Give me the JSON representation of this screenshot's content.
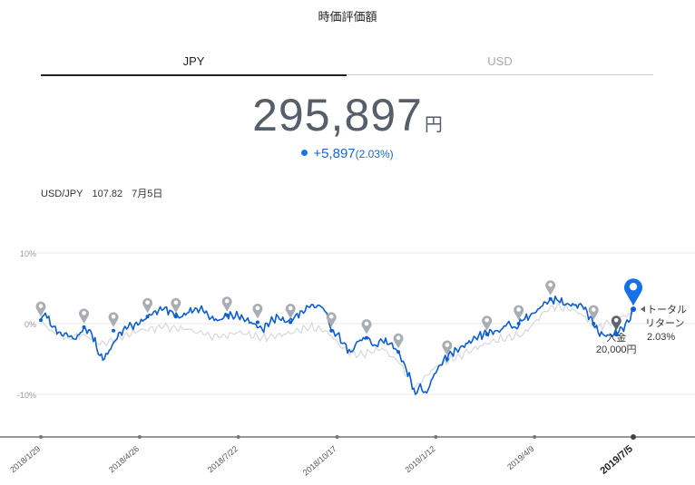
{
  "page": {
    "title": "時価評価額",
    "tabs": [
      {
        "label": "JPY",
        "active": true
      },
      {
        "label": "USD",
        "active": false
      }
    ],
    "amount": {
      "value": "295,897",
      "unit": "円"
    },
    "change": {
      "value": "+5,897",
      "percent": "(2.03%)"
    },
    "fx": {
      "pair": "USD/JPY",
      "rate": "107.82",
      "date": "7月5日"
    }
  },
  "colors": {
    "primary": "#0b5ed7",
    "compare": "#d7dbe0",
    "marker": "#a9aeb4",
    "axis": "#777777",
    "grid": "#e9e9e9"
  },
  "chart_data": {
    "type": "line",
    "yticks": [
      "10%",
      "0%",
      "-10%"
    ],
    "yvalues": [
      10,
      0,
      -10
    ],
    "ylim": [
      -16,
      14
    ],
    "xlim": [
      "2018-01-29",
      "2019-07-05"
    ],
    "xticks": [
      {
        "label": "2018/1/29",
        "date": "2018-01-29"
      },
      {
        "label": "2018/4/26",
        "date": "2018-04-26"
      },
      {
        "label": "2018/7/22",
        "date": "2018-07-22"
      },
      {
        "label": "2018/10/17",
        "date": "2018-10-17"
      },
      {
        "label": "2019/1/12",
        "date": "2019-01-12"
      },
      {
        "label": "2019/4/9",
        "date": "2019-04-09"
      },
      {
        "label": "2019/7/5",
        "date": "2019-07-05",
        "bold": true
      }
    ],
    "series": [
      {
        "role": "portfolio",
        "points": [
          [
            "2018-01-29",
            0.5
          ],
          [
            "2018-02-02",
            1.5
          ],
          [
            "2018-02-08",
            -0.5
          ],
          [
            "2018-02-15",
            -1.2
          ],
          [
            "2018-02-22",
            -1.8
          ],
          [
            "2018-03-01",
            -2.2
          ],
          [
            "2018-03-08",
            -0.5
          ],
          [
            "2018-03-15",
            -1.5
          ],
          [
            "2018-03-22",
            -4.5
          ],
          [
            "2018-03-26",
            -5.0
          ],
          [
            "2018-04-02",
            -3.0
          ],
          [
            "2018-04-09",
            -1.2
          ],
          [
            "2018-04-16",
            -0.5
          ],
          [
            "2018-04-26",
            0.0
          ],
          [
            "2018-05-03",
            1.0
          ],
          [
            "2018-05-10",
            1.8
          ],
          [
            "2018-05-17",
            2.0
          ],
          [
            "2018-05-24",
            1.8
          ],
          [
            "2018-05-31",
            0.8
          ],
          [
            "2018-06-07",
            1.5
          ],
          [
            "2018-06-14",
            2.2
          ],
          [
            "2018-06-21",
            1.8
          ],
          [
            "2018-06-28",
            0.8
          ],
          [
            "2018-07-05",
            0.5
          ],
          [
            "2018-07-12",
            1.2
          ],
          [
            "2018-07-22",
            1.0
          ],
          [
            "2018-07-29",
            0.5
          ],
          [
            "2018-08-05",
            0.0
          ],
          [
            "2018-08-12",
            -0.8
          ],
          [
            "2018-08-19",
            0.2
          ],
          [
            "2018-08-26",
            1.0
          ],
          [
            "2018-09-02",
            0.2
          ],
          [
            "2018-09-09",
            0.8
          ],
          [
            "2018-09-16",
            1.8
          ],
          [
            "2018-09-23",
            2.3
          ],
          [
            "2018-09-30",
            2.6
          ],
          [
            "2018-10-03",
            2.4
          ],
          [
            "2018-10-08",
            1.5
          ],
          [
            "2018-10-12",
            -1.0
          ],
          [
            "2018-10-17",
            -1.5
          ],
          [
            "2018-10-22",
            -2.8
          ],
          [
            "2018-10-29",
            -4.0
          ],
          [
            "2018-11-05",
            -2.5
          ],
          [
            "2018-11-12",
            -2.0
          ],
          [
            "2018-11-19",
            -3.0
          ],
          [
            "2018-11-26",
            -2.5
          ],
          [
            "2018-12-03",
            -2.8
          ],
          [
            "2018-12-10",
            -4.0
          ],
          [
            "2018-12-17",
            -6.5
          ],
          [
            "2018-12-21",
            -8.0
          ],
          [
            "2018-12-25",
            -10.0
          ],
          [
            "2018-12-28",
            -9.0
          ],
          [
            "2019-01-04",
            -9.8
          ],
          [
            "2019-01-08",
            -8.0
          ],
          [
            "2019-01-12",
            -7.0
          ],
          [
            "2019-01-19",
            -5.0
          ],
          [
            "2019-01-26",
            -4.2
          ],
          [
            "2019-02-02",
            -3.5
          ],
          [
            "2019-02-09",
            -2.8
          ],
          [
            "2019-02-16",
            -2.0
          ],
          [
            "2019-02-23",
            -1.5
          ],
          [
            "2019-03-02",
            -1.0
          ],
          [
            "2019-03-09",
            -1.2
          ],
          [
            "2019-03-16",
            0.0
          ],
          [
            "2019-03-23",
            -0.5
          ],
          [
            "2019-03-30",
            0.5
          ],
          [
            "2019-04-09",
            1.5
          ],
          [
            "2019-04-16",
            2.5
          ],
          [
            "2019-04-23",
            3.5
          ],
          [
            "2019-04-30",
            3.2
          ],
          [
            "2019-05-07",
            2.8
          ],
          [
            "2019-05-14",
            2.6
          ],
          [
            "2019-05-21",
            2.5
          ],
          [
            "2019-05-28",
            1.0
          ],
          [
            "2019-06-04",
            -1.2
          ],
          [
            "2019-06-11",
            -1.8
          ],
          [
            "2019-06-18",
            -1.5
          ],
          [
            "2019-06-25",
            -0.6
          ],
          [
            "2019-07-01",
            0.2
          ],
          [
            "2019-07-05",
            2.03
          ]
        ]
      },
      {
        "role": "comparison",
        "points": [
          [
            "2018-01-29",
            0.2
          ],
          [
            "2018-02-08",
            -1.0
          ],
          [
            "2018-02-22",
            -2.0
          ],
          [
            "2018-03-08",
            -1.5
          ],
          [
            "2018-03-22",
            -3.0
          ],
          [
            "2018-04-09",
            -2.0
          ],
          [
            "2018-04-26",
            -1.0
          ],
          [
            "2018-05-17",
            -0.5
          ],
          [
            "2018-06-07",
            -0.8
          ],
          [
            "2018-06-21",
            -1.5
          ],
          [
            "2018-07-05",
            -2.0
          ],
          [
            "2018-07-22",
            -1.2
          ],
          [
            "2018-08-12",
            -2.0
          ],
          [
            "2018-09-02",
            -1.5
          ],
          [
            "2018-09-23",
            -0.5
          ],
          [
            "2018-10-08",
            -1.0
          ],
          [
            "2018-10-22",
            -3.5
          ],
          [
            "2018-11-05",
            -4.5
          ],
          [
            "2018-11-26",
            -3.5
          ],
          [
            "2018-12-10",
            -5.5
          ],
          [
            "2018-12-25",
            -9.0
          ],
          [
            "2019-01-12",
            -6.0
          ],
          [
            "2019-02-02",
            -4.5
          ],
          [
            "2019-03-02",
            -2.5
          ],
          [
            "2019-03-30",
            -1.5
          ],
          [
            "2019-04-23",
            2.5
          ],
          [
            "2019-05-14",
            2.0
          ],
          [
            "2019-06-04",
            -0.5
          ],
          [
            "2019-06-25",
            1.0
          ],
          [
            "2019-07-05",
            1.5
          ]
        ]
      }
    ],
    "markers": [
      {
        "date": "2018-01-29",
        "y": 0.5
      },
      {
        "date": "2018-03-08",
        "y": -0.5
      },
      {
        "date": "2018-04-03",
        "y": -1.0
      },
      {
        "date": "2018-05-03",
        "y": 1.0
      },
      {
        "date": "2018-05-28",
        "y": 1.0
      },
      {
        "date": "2018-07-12",
        "y": 1.2
      },
      {
        "date": "2018-08-08",
        "y": 0.2
      },
      {
        "date": "2018-09-06",
        "y": 0.2
      },
      {
        "date": "2018-10-12",
        "y": -1.0
      },
      {
        "date": "2018-11-12",
        "y": -2.0
      },
      {
        "date": "2018-12-10",
        "y": -4.0
      },
      {
        "date": "2019-01-22",
        "y": -5.0
      },
      {
        "date": "2019-02-26",
        "y": -1.5
      },
      {
        "date": "2019-03-26",
        "y": 0.0
      },
      {
        "date": "2019-04-23",
        "y": 3.5
      },
      {
        "date": "2019-05-31",
        "y": 0.0
      },
      {
        "date": "2019-06-20",
        "y": -1.5,
        "kind": "deposit"
      },
      {
        "date": "2019-07-05",
        "y": 2.03,
        "kind": "current"
      }
    ],
    "annotations": {
      "deposit": {
        "line1": "入金",
        "line2": "20,000円",
        "date": "2019-06-20"
      },
      "total": {
        "line1": "トータル",
        "line2": "リターン",
        "line3": "2.03%",
        "date": "2019-07-05"
      }
    }
  }
}
